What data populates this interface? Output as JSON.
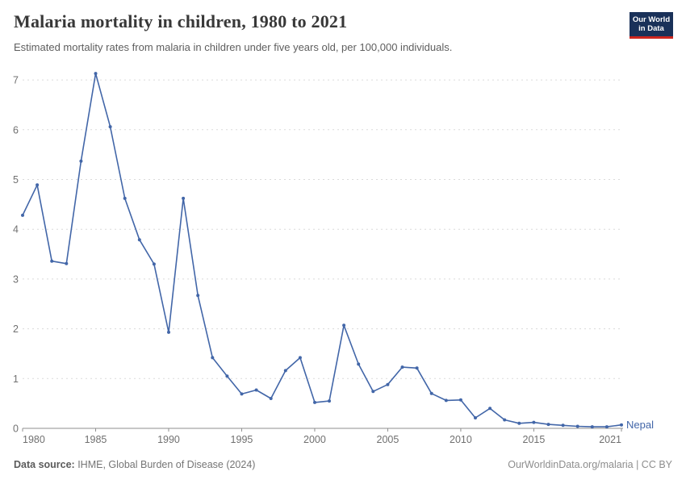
{
  "header": {
    "title": "Malaria mortality in children, 1980 to 2021",
    "subtitle": "Estimated mortality rates from malaria in children under five years old, per 100,000 individuals.",
    "logo": {
      "line1": "Our World",
      "line2": "in Data",
      "bg_color": "#1A3159",
      "bar_color": "#CE261E"
    }
  },
  "chart_data": {
    "type": "line",
    "title": "Malaria mortality in children, 1980 to 2021",
    "xlabel": "",
    "ylabel": "Estimated malaria mortality rate in children under five, per 100,000",
    "xlim": [
      1980,
      2021
    ],
    "ylim": [
      0,
      7.25
    ],
    "grid": true,
    "legend_position": "end-of-line-label",
    "x": [
      1980,
      1981,
      1982,
      1983,
      1984,
      1985,
      1986,
      1987,
      1988,
      1989,
      1990,
      1991,
      1992,
      1993,
      1994,
      1995,
      1996,
      1997,
      1998,
      1999,
      2000,
      2001,
      2002,
      2003,
      2004,
      2005,
      2006,
      2007,
      2008,
      2009,
      2010,
      2011,
      2012,
      2013,
      2014,
      2015,
      2016,
      2017,
      2018,
      2019,
      2020,
      2021
    ],
    "series": [
      {
        "name": "Nepal",
        "color": "#4266A8",
        "values": [
          4.28,
          4.89,
          3.36,
          3.31,
          5.37,
          7.13,
          6.06,
          4.62,
          3.79,
          3.3,
          1.93,
          4.62,
          2.67,
          1.42,
          1.05,
          0.69,
          0.77,
          0.6,
          1.16,
          1.42,
          0.52,
          0.55,
          2.07,
          1.29,
          0.74,
          0.88,
          1.23,
          1.21,
          0.7,
          0.56,
          0.57,
          0.21,
          0.4,
          0.17,
          0.1,
          0.12,
          0.08,
          0.06,
          0.04,
          0.03,
          0.03,
          0.07
        ]
      }
    ],
    "x_ticks": [
      1980,
      1985,
      1990,
      1995,
      2000,
      2005,
      2010,
      2015,
      2021
    ],
    "y_ticks": [
      0,
      1,
      2,
      3,
      4,
      5,
      6,
      7
    ]
  },
  "footer": {
    "source_label": "Data source:",
    "source_text": " IHME, Global Burden of Disease (2024)",
    "credit": "OurWorldinData.org/malaria | CC BY"
  },
  "colors": {
    "axis_text": "#707070",
    "grid_line": "#dadada",
    "axis_line": "#8f8f8f",
    "title_text": "#383838",
    "subtitle_text": "#5e5e5e"
  }
}
